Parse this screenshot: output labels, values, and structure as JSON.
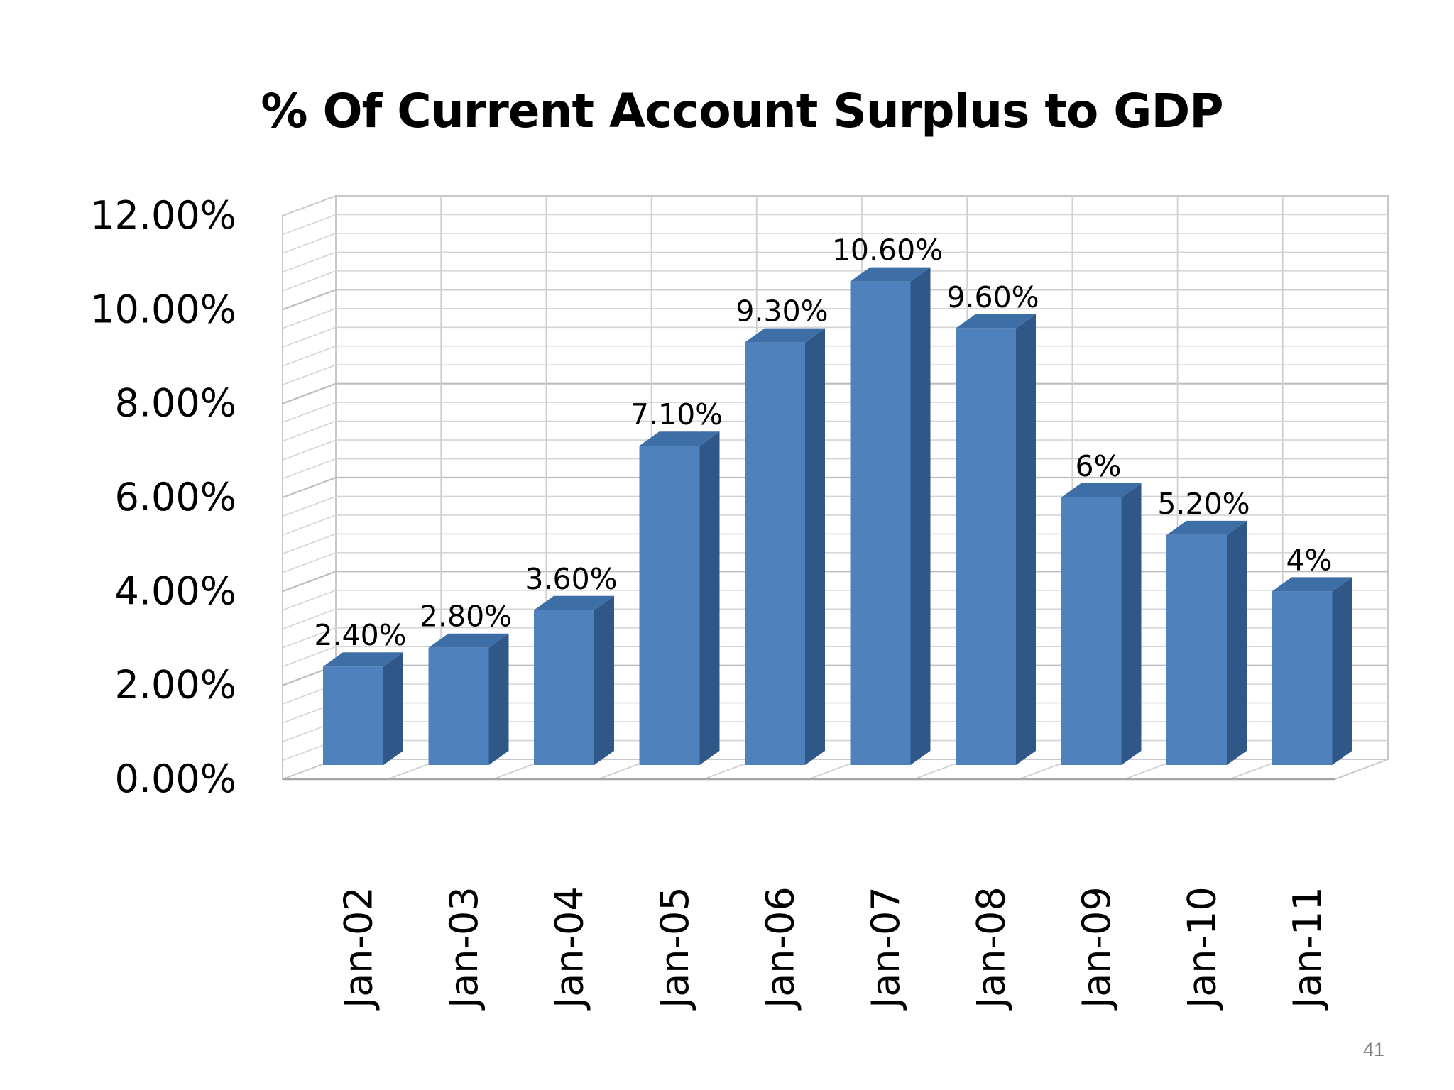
{
  "slide": {
    "page_number": "41"
  },
  "chart_data": {
    "type": "bar",
    "title": "% Of Current Account Surplus to GDP",
    "xlabel": "",
    "ylabel": "",
    "categories": [
      "Jan-02",
      "Jan-03",
      "Jan-04",
      "Jan-05",
      "Jan-06",
      "Jan-07",
      "Jan-08",
      "Jan-09",
      "Jan-10",
      "Jan-11"
    ],
    "values": [
      2.4,
      2.8,
      3.6,
      7.1,
      9.3,
      10.6,
      9.6,
      6.0,
      5.2,
      4.0
    ],
    "data_labels": [
      "2.40%",
      "2.80%",
      "3.60%",
      "7.10%",
      "9.30%",
      "10.60%",
      "9.60%",
      "6%",
      "5.20%",
      "4%"
    ],
    "ylim": [
      0,
      12
    ],
    "y_ticks": [
      0,
      2,
      4,
      6,
      8,
      10,
      12
    ],
    "y_tick_labels": [
      "0.00%",
      "2.00%",
      "4.00%",
      "6.00%",
      "8.00%",
      "10.00%",
      "12.00%"
    ],
    "style": "3d-column",
    "grid": true,
    "legend": "none",
    "colors": {
      "bar_front": "#4f81bd",
      "bar_side": "#2f5788",
      "bar_top": "#3e6ea6",
      "grid": "#c8c8c8"
    }
  }
}
